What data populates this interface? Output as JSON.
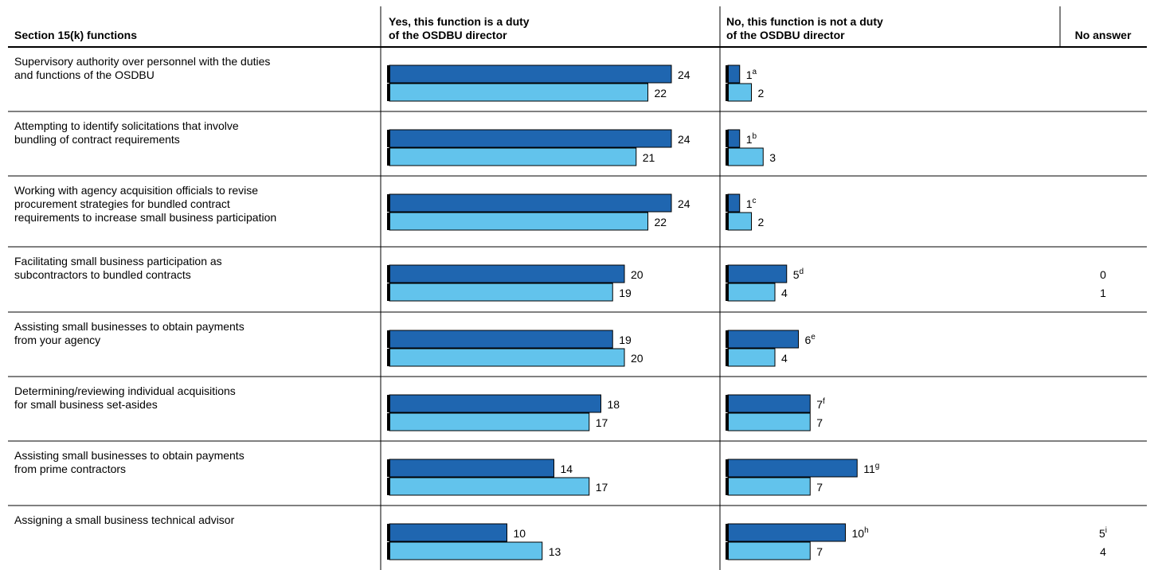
{
  "chart_data": {
    "type": "bar",
    "headers": {
      "functions": "Section 15(k) functions",
      "yes_line1": "Yes, this function is a duty",
      "yes_line2": "of the OSDBU director",
      "no_line1": "No, this function is not a duty",
      "no_line2": "of the OSDBU director",
      "no_answer": "No answer"
    },
    "rows": [
      {
        "label_lines": [
          "Supervisory authority over personnel with the duties",
          "and functions of the OSDBU"
        ],
        "yes": [
          24,
          22
        ],
        "no": [
          1,
          2
        ],
        "no_note": "a",
        "no_answer": [
          "",
          ""
        ],
        "no_answer_note": ""
      },
      {
        "label_lines": [
          "Attempting to identify solicitations that involve",
          "bundling of contract requirements"
        ],
        "yes": [
          24,
          21
        ],
        "no": [
          1,
          3
        ],
        "no_note": "b",
        "no_answer": [
          "",
          ""
        ],
        "no_answer_note": ""
      },
      {
        "label_lines": [
          "Working with agency acquisition officials to revise",
          "procurement strategies for bundled contract",
          "requirements to increase small business participation"
        ],
        "yes": [
          24,
          22
        ],
        "no": [
          1,
          2
        ],
        "no_note": "c",
        "no_answer": [
          "",
          ""
        ],
        "no_answer_note": ""
      },
      {
        "label_lines": [
          "Facilitating small business participation as",
          "subcontractors to bundled contracts"
        ],
        "yes": [
          20,
          19
        ],
        "no": [
          5,
          4
        ],
        "no_note": "d",
        "no_answer": [
          "0",
          "1"
        ],
        "no_answer_note": ""
      },
      {
        "label_lines": [
          "Assisting small businesses to obtain payments",
          "from your agency"
        ],
        "yes": [
          19,
          20
        ],
        "no": [
          6,
          4
        ],
        "no_note": "e",
        "no_answer": [
          "",
          ""
        ],
        "no_answer_note": ""
      },
      {
        "label_lines": [
          "Determining/reviewing individual acquisitions",
          "for small business set-asides"
        ],
        "yes": [
          18,
          17
        ],
        "no": [
          7,
          7
        ],
        "no_note": "f",
        "no_answer": [
          "",
          ""
        ],
        "no_answer_note": ""
      },
      {
        "label_lines": [
          "Assisting small businesses to obtain payments",
          "from prime contractors"
        ],
        "yes": [
          14,
          17
        ],
        "no": [
          11,
          7
        ],
        "no_note": "g",
        "no_answer": [
          "",
          ""
        ],
        "no_answer_note": ""
      },
      {
        "label_lines": [
          "Assigning a small business technical advisor"
        ],
        "yes": [
          10,
          13
        ],
        "no": [
          10,
          7
        ],
        "no_note": "h",
        "no_answer": [
          "5",
          "4"
        ],
        "no_answer_note": "i"
      }
    ],
    "series_colors": [
      "#1f66b0",
      "#62c3ec"
    ],
    "grid": true
  }
}
